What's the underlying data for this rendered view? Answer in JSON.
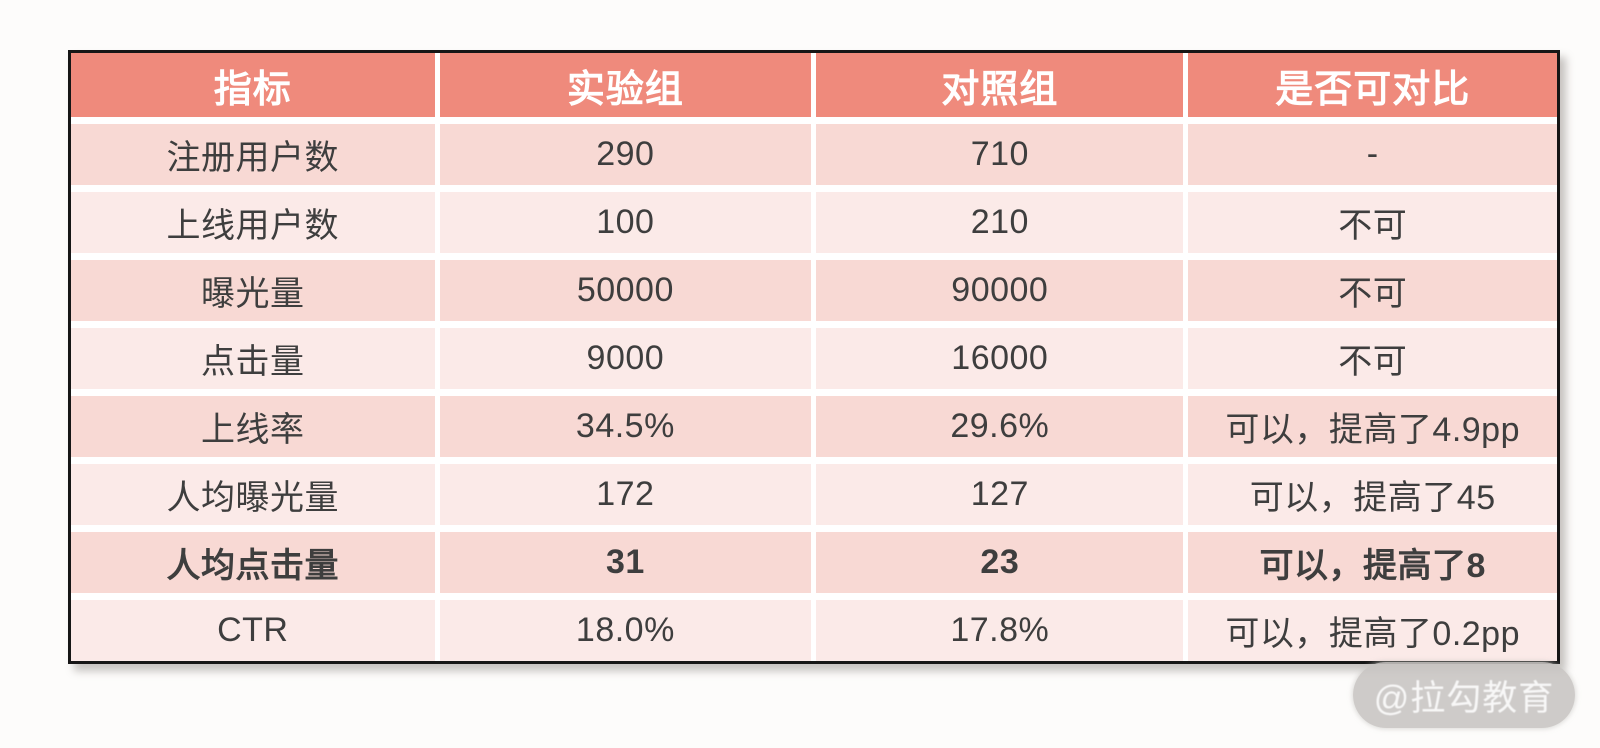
{
  "chart_data": {
    "type": "table",
    "columns": [
      "指标",
      "实验组",
      "对照组",
      "是否可对比"
    ],
    "rows": [
      [
        "注册用户数",
        "290",
        "710",
        "-"
      ],
      [
        "上线用户数",
        "100",
        "210",
        "不可"
      ],
      [
        "曝光量",
        "50000",
        "90000",
        "不可"
      ],
      [
        "点击量",
        "9000",
        "16000",
        "不可"
      ],
      [
        "上线率",
        "34.5%",
        "29.6%",
        "可以，提高了4.9pp"
      ],
      [
        "人均曝光量",
        "172",
        "127",
        "可以，提高了45"
      ],
      [
        "人均点击量",
        "31",
        "23",
        "可以，提高了8"
      ],
      [
        "CTR",
        "18.0%",
        "17.8%",
        "可以，提高了0.2pp"
      ]
    ],
    "emphasized_row_index": 6
  },
  "watermark": {
    "text": "@拉勾教育"
  },
  "colors": {
    "header_bg": "#EF8A7C",
    "header_text": "#FFFFFF",
    "row_odd_bg": "#F8D9D4",
    "row_even_bg": "#FBEAE8",
    "body_text": "#3E3E3E",
    "border": "#161616",
    "separator": "#FFFFFF"
  }
}
